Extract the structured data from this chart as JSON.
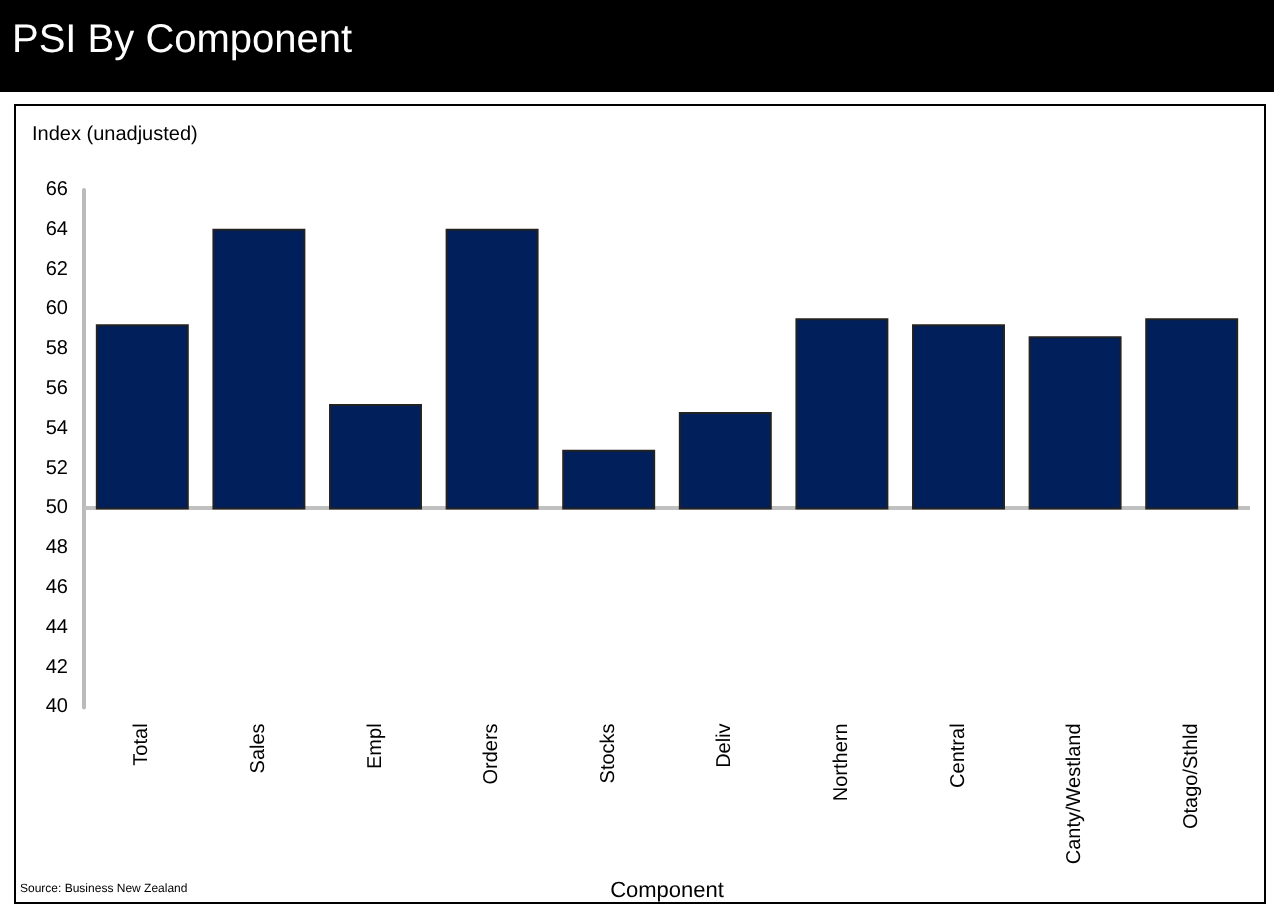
{
  "chart_data": {
    "type": "bar",
    "title": "PSI By Component",
    "ylabel": "Index (unadjusted)",
    "xlabel": "Component",
    "annotations": [
      "Source: Business New Zealand"
    ],
    "categories": [
      "Total",
      "Sales",
      "Empl",
      "Orders",
      "Stocks",
      "Deliv",
      "Northern",
      "Central",
      "Canty/Westland",
      "Otago/Sthld"
    ],
    "base": [
      50,
      50,
      50,
      50,
      50,
      50,
      50,
      50,
      50,
      50
    ],
    "values": [
      9.2,
      14.0,
      5.2,
      14.0,
      2.9,
      4.8,
      9.5,
      9.2,
      8.6,
      9.5
    ],
    "color": "#001f5b",
    "ylim": [
      40,
      66
    ],
    "yticks": [
      40,
      42,
      44,
      46,
      48,
      50,
      52,
      54,
      56,
      58,
      60,
      62,
      64,
      66
    ],
    "ref_lines": [
      {
        "axis": "y",
        "value": 50,
        "color": "#c0c0c0"
      }
    ],
    "grid": false
  }
}
